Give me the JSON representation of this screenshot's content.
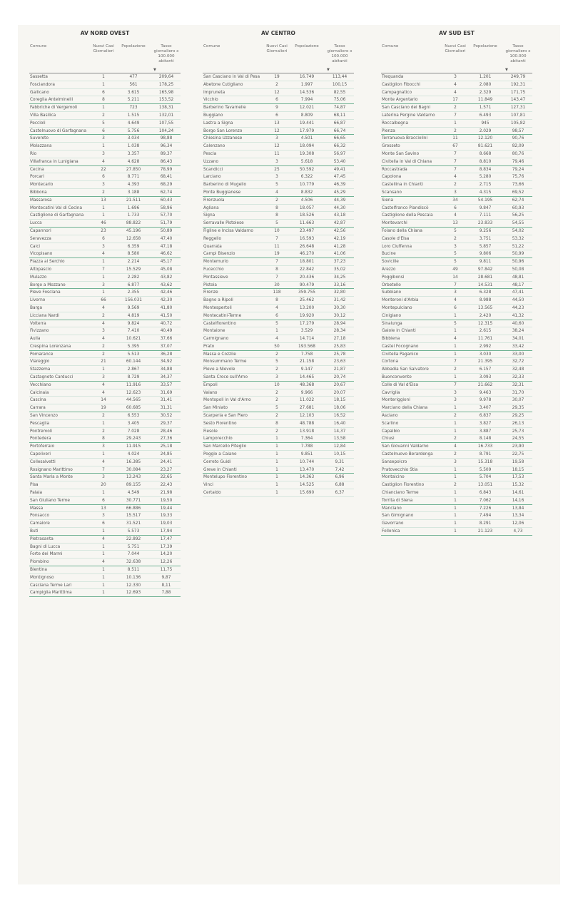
{
  "headers": {
    "comune": "Comune",
    "cases": "Nuovi Casi Giornalieri",
    "pop": "Popolazione",
    "rate": "Tasso giornaliero x 100.000 abitanti",
    "sort_icon": "sort-descending-icon"
  },
  "colors": {
    "background": "#f7f6f2",
    "separator": "#d5e6dd",
    "separator_strong": "#6fb293"
  },
  "tables": [
    {
      "title": "AV NORD OVEST",
      "rows": [
        [
          "Sassetta",
          "1",
          "477",
          "209,64"
        ],
        [
          "Fosciandora",
          "1",
          "561",
          "178,25"
        ],
        [
          "Gallicano",
          "6",
          "3.615",
          "165,98"
        ],
        [
          "Coreglia Antelminelli",
          "8",
          "5.211",
          "153,52"
        ],
        [
          "Fabbriche di Vergemoli",
          "1",
          "723",
          "138,31"
        ],
        [
          "Villa Basilica",
          "2",
          "1.515",
          "132,01"
        ],
        [
          "Peccioli",
          "5",
          "4.649",
          "107,55"
        ],
        [
          "Castelnuovo di Garfagnana",
          "6",
          "5.756",
          "104,24"
        ],
        [
          "Suvereto",
          "3",
          "3.034",
          "98,88"
        ],
        [
          "Molazzana",
          "1",
          "1.038",
          "96,34"
        ],
        [
          "Rio",
          "3",
          "3.357",
          "89,37"
        ],
        [
          "Villafranca in Lunigiana",
          "4",
          "4.628",
          "86,43"
        ],
        [
          "Cecina",
          "22",
          "27.850",
          "78,99"
        ],
        [
          "Porcari",
          "6",
          "8.771",
          "68,41"
        ],
        [
          "Montecarlo",
          "3",
          "4.393",
          "68,29"
        ],
        [
          "Bibbona",
          "2",
          "3.188",
          "62,74"
        ],
        [
          "Massarosa",
          "13",
          "21.511",
          "60,43"
        ],
        [
          "Montecatini Val di Cecina",
          "1",
          "1.696",
          "58,96"
        ],
        [
          "Castiglione di Garfagnana",
          "1",
          "1.733",
          "57,70"
        ],
        [
          "Lucca",
          "46",
          "88.822",
          "51,79"
        ],
        [
          "Capannori",
          "23",
          "45.196",
          "50,89"
        ],
        [
          "Seravezza",
          "6",
          "12.658",
          "47,40"
        ],
        [
          "Calci",
          "3",
          "6.359",
          "47,18"
        ],
        [
          "Vicopisano",
          "4",
          "8.580",
          "46,62"
        ],
        [
          "Piazza al Serchio",
          "1",
          "2.214",
          "45,17"
        ],
        [
          "Altopascio",
          "7",
          "15.529",
          "45,08"
        ],
        [
          "Mulazzo",
          "1",
          "2.282",
          "43,82"
        ],
        [
          "Borgo a Mozzano",
          "3",
          "6.877",
          "43,62"
        ],
        [
          "Pieve Fosciana",
          "1",
          "2.355",
          "42,46"
        ],
        [
          "Livorno",
          "66",
          "156.031",
          "42,30"
        ],
        [
          "Barga",
          "4",
          "9.569",
          "41,80"
        ],
        [
          "Licciana Nardi",
          "2",
          "4.819",
          "41,50"
        ],
        [
          "Volterra",
          "4",
          "9.824",
          "40,72"
        ],
        [
          "Fivizzano",
          "3",
          "7.410",
          "40,49"
        ],
        [
          "Aulla",
          "4",
          "10.621",
          "37,66"
        ],
        [
          "Crespina Lorenzana",
          "2",
          "5.395",
          "37,07"
        ],
        [
          "Pomarance",
          "2",
          "5.513",
          "36,28"
        ],
        [
          "Viareggio",
          "21",
          "60.144",
          "34,92"
        ],
        [
          "Stazzema",
          "1",
          "2.867",
          "34,88"
        ],
        [
          "Castagneto Carducci",
          "3",
          "8.729",
          "34,37"
        ],
        [
          "Vecchiano",
          "4",
          "11.916",
          "33,57"
        ],
        [
          "Calcinaia",
          "4",
          "12.623",
          "31,69"
        ],
        [
          "Cascina",
          "14",
          "44.565",
          "31,41"
        ],
        [
          "Carrara",
          "19",
          "60.685",
          "31,31"
        ],
        [
          "San Vincenzo",
          "2",
          "6.553",
          "30,52"
        ],
        [
          "Pescaglia",
          "1",
          "3.405",
          "29,37"
        ],
        [
          "Pontremoli",
          "2",
          "7.028",
          "28,46"
        ],
        [
          "Pontedera",
          "8",
          "29.243",
          "27,36"
        ],
        [
          "Portoferraio",
          "3",
          "11.915",
          "25,18"
        ],
        [
          "Capoliveri",
          "1",
          "4.024",
          "24,85"
        ],
        [
          "Collesalvetti",
          "4",
          "16.385",
          "24,41"
        ],
        [
          "Rosignano Marittimo",
          "7",
          "30.084",
          "23,27"
        ],
        [
          "Santa Maria a Monte",
          "3",
          "13.243",
          "22,65"
        ],
        [
          "Pisa",
          "20",
          "89.155",
          "22,43"
        ],
        [
          "Palaia",
          "1",
          "4.549",
          "21,98"
        ],
        [
          "San Giuliano Terme",
          "6",
          "30.771",
          "19,50"
        ],
        [
          "Massa",
          "13",
          "66.886",
          "19,44"
        ],
        [
          "Ponsacco",
          "3",
          "15.517",
          "19,33"
        ],
        [
          "Camaiore",
          "6",
          "31.521",
          "19,03"
        ],
        [
          "Buti",
          "1",
          "5.573",
          "17,94"
        ],
        [
          "Pietrasanta",
          "4",
          "22.892",
          "17,47"
        ],
        [
          "Bagni di Lucca",
          "1",
          "5.751",
          "17,39"
        ],
        [
          "Forte dei Marmi",
          "1",
          "7.044",
          "14,20"
        ],
        [
          "Piombino",
          "4",
          "32.638",
          "12,26"
        ],
        [
          "Bientina",
          "1",
          "8.511",
          "11,75"
        ],
        [
          "Montignoso",
          "1",
          "10.136",
          "9,87"
        ],
        [
          "Casciana Terme Lari",
          "1",
          "12.330",
          "8,11"
        ],
        [
          "Campiglia Marittima",
          "1",
          "12.693",
          "7,88"
        ]
      ]
    },
    {
      "title": "AV CENTRO",
      "rows": [
        [
          "San Casciano in Val di Pesa",
          "19",
          "16.749",
          "113,44"
        ],
        [
          "Abetone Cutigliano",
          "2",
          "1.997",
          "100,15"
        ],
        [
          "Impruneta",
          "12",
          "14.536",
          "82,55"
        ],
        [
          "Vicchio",
          "6",
          "7.994",
          "75,06"
        ],
        [
          "Barberino Tavarnelle",
          "9",
          "12.021",
          "74,87"
        ],
        [
          "Buggiano",
          "6",
          "8.809",
          "68,11"
        ],
        [
          "Lastra a Signa",
          "13",
          "19.441",
          "66,87"
        ],
        [
          "Borgo San Lorenzo",
          "12",
          "17.979",
          "66,74"
        ],
        [
          "Chiesina Uzzanese",
          "3",
          "4.501",
          "66,65"
        ],
        [
          "Calenzano",
          "12",
          "18.094",
          "66,32"
        ],
        [
          "Pescia",
          "11",
          "19.308",
          "56,97"
        ],
        [
          "Uzzano",
          "3",
          "5.618",
          "53,40"
        ],
        [
          "Scandicci",
          "25",
          "50.592",
          "49,41"
        ],
        [
          "Larciano",
          "3",
          "6.322",
          "47,45"
        ],
        [
          "Barberino di Mugello",
          "5",
          "10.779",
          "46,39"
        ],
        [
          "Ponte Buggianese",
          "4",
          "8.832",
          "45,29"
        ],
        [
          "Firenzuola",
          "2",
          "4.506",
          "44,39"
        ],
        [
          "Agliana",
          "8",
          "18.057",
          "44,30"
        ],
        [
          "Signa",
          "8",
          "18.526",
          "43,18"
        ],
        [
          "Serravalle Pistoiese",
          "5",
          "11.663",
          "42,87"
        ],
        [
          "Figline e Incisa Valdarno",
          "10",
          "23.497",
          "42,56"
        ],
        [
          "Reggello",
          "7",
          "16.593",
          "42,19"
        ],
        [
          "Quarrata",
          "11",
          "26.648",
          "41,28"
        ],
        [
          "Campi Bisenzio",
          "19",
          "46.270",
          "41,06"
        ],
        [
          "Montemurlo",
          "7",
          "18.801",
          "37,23"
        ],
        [
          "Fucecchio",
          "8",
          "22.842",
          "35,02"
        ],
        [
          "Pontassieve",
          "7",
          "20.436",
          "34,25"
        ],
        [
          "Pistoia",
          "30",
          "90.479",
          "33,16"
        ],
        [
          "Firenze",
          "118",
          "359.755",
          "32,80"
        ],
        [
          "Bagno a Ripoli",
          "8",
          "25.462",
          "31,42"
        ],
        [
          "Montespertoli",
          "4",
          "13.200",
          "30,30"
        ],
        [
          "Montecatini-Terme",
          "6",
          "19.920",
          "30,12"
        ],
        [
          "Castelfiorentino",
          "5",
          "17.279",
          "28,94"
        ],
        [
          "Montaione",
          "1",
          "3.529",
          "28,34"
        ],
        [
          "Carmignano",
          "4",
          "14.714",
          "27,18"
        ],
        [
          "Prato",
          "50",
          "193.568",
          "25,83"
        ],
        [
          "Massa e Cozzile",
          "2",
          "7.758",
          "25,78"
        ],
        [
          "Monsummano Terme",
          "5",
          "21.158",
          "23,63"
        ],
        [
          "Pieve a Nievole",
          "2",
          "9.147",
          "21,87"
        ],
        [
          "Santa Croce sull'Arno",
          "3",
          "14.465",
          "20,74"
        ],
        [
          "Empoli",
          "10",
          "48.368",
          "20,67"
        ],
        [
          "Vaiano",
          "2",
          "9.966",
          "20,07"
        ],
        [
          "Montopoli in Val d'Arno",
          "2",
          "11.022",
          "18,15"
        ],
        [
          "San Miniato",
          "5",
          "27.681",
          "18,06"
        ],
        [
          "Scarperia e San Piero",
          "2",
          "12.103",
          "16,52"
        ],
        [
          "Sesto Fiorentino",
          "8",
          "48.788",
          "16,40"
        ],
        [
          "Fiesole",
          "2",
          "13.918",
          "14,37"
        ],
        [
          "Lamporecchio",
          "1",
          "7.364",
          "13,58"
        ],
        [
          "San Marcello Piteglio",
          "1",
          "7.788",
          "12,84"
        ],
        [
          "Poggio a Caiano",
          "1",
          "9.851",
          "10,15"
        ],
        [
          "Cerreto Guidi",
          "1",
          "10.744",
          "9,31"
        ],
        [
          "Greve in Chianti",
          "1",
          "13.470",
          "7,42"
        ],
        [
          "Montelupo Fiorentino",
          "1",
          "14.363",
          "6,96"
        ],
        [
          "Vinci",
          "1",
          "14.525",
          "6,88"
        ],
        [
          "Certaldo",
          "1",
          "15.690",
          "6,37"
        ]
      ]
    },
    {
      "title": "AV SUD EST",
      "rows": [
        [
          "Trequanda",
          "3",
          "1.201",
          "249,79"
        ],
        [
          "Castiglion Fibocchi",
          "4",
          "2.080",
          "192,31"
        ],
        [
          "Campagnatico",
          "4",
          "2.329",
          "171,75"
        ],
        [
          "Monte Argentario",
          "17",
          "11.849",
          "143,47"
        ],
        [
          "San Casciano dei Bagni",
          "2",
          "1.571",
          "127,31"
        ],
        [
          "Laterina Pergine Valdarno",
          "7",
          "6.493",
          "107,81"
        ],
        [
          "Roccalbegna",
          "1",
          "945",
          "105,82"
        ],
        [
          "Pienza",
          "2",
          "2.029",
          "98,57"
        ],
        [
          "Terranuova Bracciolini",
          "11",
          "12.120",
          "90,76"
        ],
        [
          "Grosseto",
          "67",
          "81.621",
          "82,09"
        ],
        [
          "Monte San Savino",
          "7",
          "8.668",
          "80,76"
        ],
        [
          "Civitella in Val di Chiana",
          "7",
          "8.810",
          "79,46"
        ],
        [
          "Roccastrada",
          "7",
          "8.834",
          "79,24"
        ],
        [
          "Capolona",
          "4",
          "5.280",
          "75,76"
        ],
        [
          "Castellina in Chianti",
          "2",
          "2.715",
          "73,66"
        ],
        [
          "Scansano",
          "3",
          "4.315",
          "69,52"
        ],
        [
          "Siena",
          "34",
          "54.195",
          "62,74"
        ],
        [
          "Castelfranco Piandiscò",
          "6",
          "9.847",
          "60,93"
        ],
        [
          "Castiglione della Pescaia",
          "4",
          "7.111",
          "56,25"
        ],
        [
          "Montevarchi",
          "13",
          "23.833",
          "54,55"
        ],
        [
          "Foiano della Chiana",
          "5",
          "9.256",
          "54,02"
        ],
        [
          "Casole d'Elsa",
          "2",
          "3.751",
          "53,32"
        ],
        [
          "Loro Ciuffenna",
          "3",
          "5.857",
          "51,22"
        ],
        [
          "Bucine",
          "5",
          "9.806",
          "50,99"
        ],
        [
          "Sovicille",
          "5",
          "9.811",
          "50,96"
        ],
        [
          "Arezzo",
          "49",
          "97.842",
          "50,08"
        ],
        [
          "Poggibonsi",
          "14",
          "28.681",
          "48,81"
        ],
        [
          "Orbetello",
          "7",
          "14.531",
          "48,17"
        ],
        [
          "Subbiano",
          "3",
          "6.328",
          "47,41"
        ],
        [
          "Monteroni d'Arbia",
          "4",
          "8.988",
          "44,50"
        ],
        [
          "Montepulciano",
          "6",
          "13.565",
          "44,23"
        ],
        [
          "Cinigiano",
          "1",
          "2.420",
          "41,32"
        ],
        [
          "Sinalunga",
          "5",
          "12.315",
          "40,60"
        ],
        [
          "Gaiole in Chianti",
          "1",
          "2.615",
          "38,24"
        ],
        [
          "Bibbiena",
          "4",
          "11.761",
          "34,01"
        ],
        [
          "Castel Focognano",
          "1",
          "2.992",
          "33,42"
        ],
        [
          "Civitella Paganico",
          "1",
          "3.030",
          "33,00"
        ],
        [
          "Cortona",
          "7",
          "21.395",
          "32,72"
        ],
        [
          "Abbadia San Salvatore",
          "2",
          "6.157",
          "32,48"
        ],
        [
          "Buonconvento",
          "1",
          "3.093",
          "32,33"
        ],
        [
          "Colle di Val d'Elsa",
          "7",
          "21.662",
          "32,31"
        ],
        [
          "Cavriglia",
          "3",
          "9.463",
          "31,70"
        ],
        [
          "Monteriggioni",
          "3",
          "9.978",
          "30,07"
        ],
        [
          "Marciano della Chiana",
          "1",
          "3.407",
          "29,35"
        ],
        [
          "Asciano",
          "2",
          "6.837",
          "29,25"
        ],
        [
          "Scarlino",
          "1",
          "3.827",
          "26,13"
        ],
        [
          "Capalbio",
          "1",
          "3.887",
          "25,73"
        ],
        [
          "Chiusi",
          "2",
          "8.148",
          "24,55"
        ],
        [
          "San Giovanni Valdarno",
          "4",
          "16.733",
          "23,90"
        ],
        [
          "Castelnuovo Berardenga",
          "2",
          "8.791",
          "22,75"
        ],
        [
          "Sansepolcro",
          "3",
          "15.318",
          "19,58"
        ],
        [
          "Pratovecchio Stia",
          "1",
          "5.509",
          "18,15"
        ],
        [
          "Montalcino",
          "1",
          "5.704",
          "17,53"
        ],
        [
          "Castiglion Fiorentino",
          "2",
          "13.051",
          "15,32"
        ],
        [
          "Chianciano Terme",
          "1",
          "6.843",
          "14,61"
        ],
        [
          "Torrita di Siena",
          "1",
          "7.062",
          "14,16"
        ],
        [
          "Manciano",
          "1",
          "7.226",
          "13,84"
        ],
        [
          "San Gimignano",
          "1",
          "7.494",
          "13,34"
        ],
        [
          "Gavorrano",
          "1",
          "8.291",
          "12,06"
        ],
        [
          "Follonica",
          "1",
          "21.123",
          "4,73"
        ]
      ]
    }
  ]
}
